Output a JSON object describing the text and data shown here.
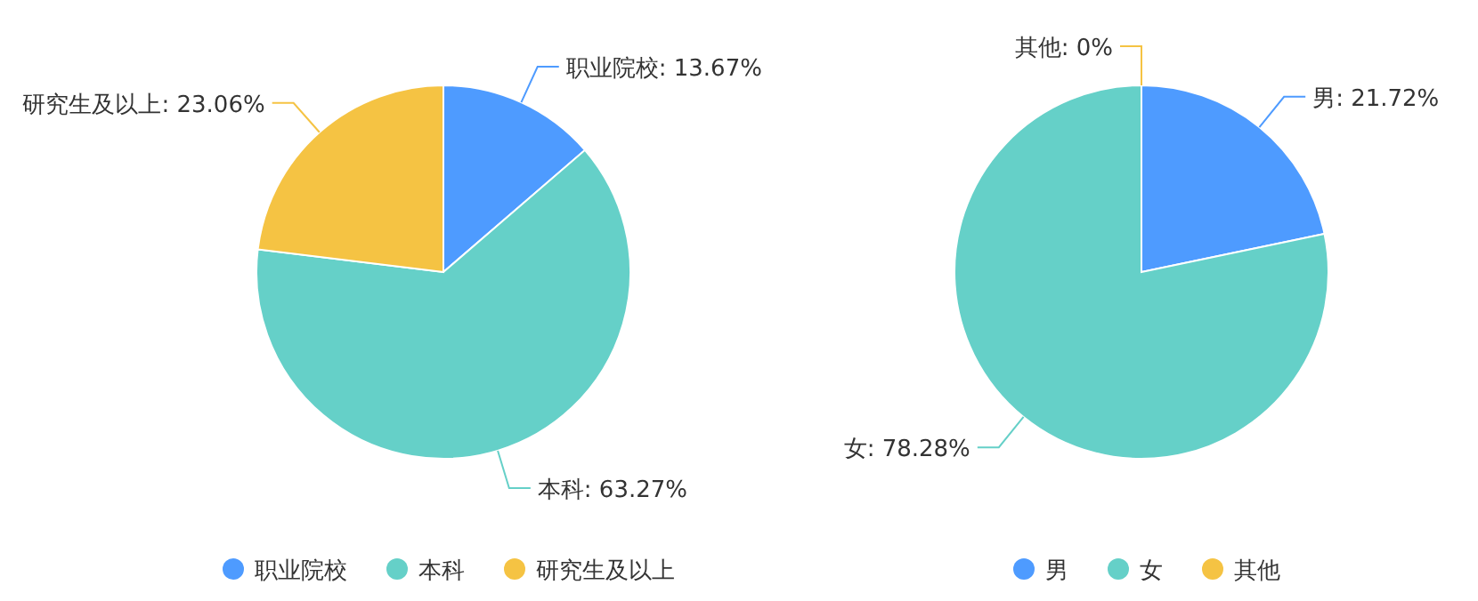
{
  "chart_data": [
    {
      "type": "pie",
      "categories": [
        "职业院校",
        "本科",
        "研究生及以上"
      ],
      "values": [
        13.67,
        63.27,
        23.06
      ],
      "value_labels": [
        "职业院校: 13.67%",
        "本科: 63.27%",
        "研究生及以上: 23.06%"
      ],
      "colors": [
        "#4e9bff",
        "#65d0c8",
        "#f5c343"
      ],
      "legend": "bottom"
    },
    {
      "type": "pie",
      "categories": [
        "男",
        "女",
        "其他"
      ],
      "values": [
        21.72,
        78.28,
        0
      ],
      "value_labels": [
        "男: 21.72%",
        "女: 78.28%",
        "其他: 0%"
      ],
      "colors": [
        "#4e9bff",
        "#65d0c8",
        "#f5c343"
      ],
      "legend": "bottom"
    }
  ]
}
